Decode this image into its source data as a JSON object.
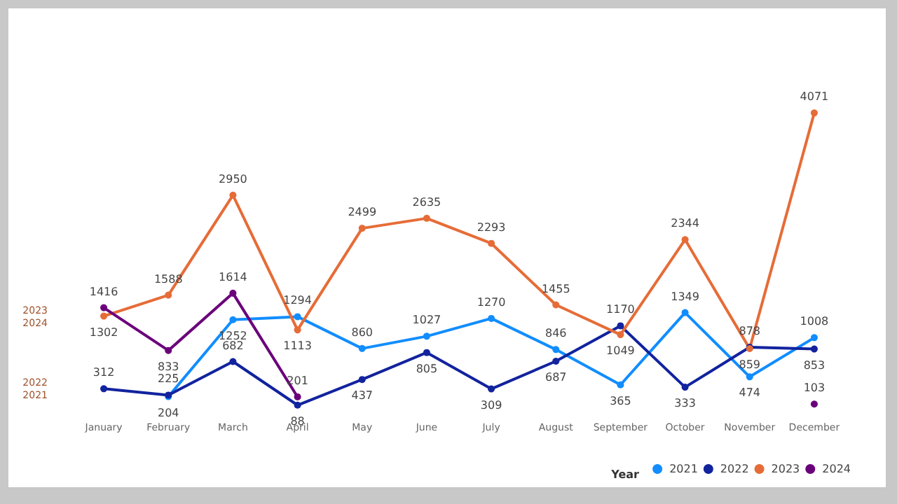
{
  "chart_data": {
    "type": "line",
    "categories": [
      "January",
      "February",
      "March",
      "April",
      "May",
      "June",
      "July",
      "August",
      "September",
      "October",
      "November",
      "December"
    ],
    "series": [
      {
        "name": "2021",
        "color": "#118dff",
        "values": [
          null,
          204,
          1252,
          1294,
          860,
          1027,
          1270,
          846,
          365,
          1349,
          474,
          1008
        ]
      },
      {
        "name": "2022",
        "color": "#12239e",
        "values": [
          312,
          225,
          682,
          88,
          437,
          805,
          309,
          687,
          1170,
          333,
          878,
          853
        ]
      },
      {
        "name": "2023",
        "color": "#e66c37",
        "values": [
          1302,
          1588,
          2950,
          1113,
          2499,
          2635,
          2293,
          1455,
          1049,
          2344,
          859,
          4071
        ]
      },
      {
        "name": "2024",
        "color": "#6b007b",
        "values": [
          1416,
          833,
          1614,
          201,
          null,
          null,
          null,
          null,
          null,
          null,
          null,
          103
        ]
      }
    ],
    "annotations": [
      "2023",
      "2024",
      "2022",
      "2021"
    ],
    "legend_title": "Year",
    "legend": "bottom right",
    "data_labels": true,
    "grid": false,
    "marker": "circle",
    "line_style": "solid"
  }
}
